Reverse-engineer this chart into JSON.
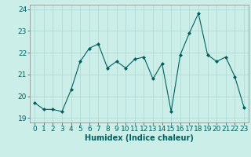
{
  "x": [
    0,
    1,
    2,
    3,
    4,
    5,
    6,
    7,
    8,
    9,
    10,
    11,
    12,
    13,
    14,
    15,
    16,
    17,
    18,
    19,
    20,
    21,
    22,
    23
  ],
  "y": [
    19.7,
    19.4,
    19.4,
    19.3,
    20.3,
    21.6,
    22.2,
    22.4,
    21.3,
    21.6,
    21.3,
    21.7,
    21.8,
    20.8,
    21.5,
    19.3,
    21.9,
    22.9,
    23.8,
    21.9,
    21.6,
    21.8,
    20.9,
    19.5
  ],
  "xlabel": "Humidex (Indice chaleur)",
  "ylim": [
    18.8,
    24.2
  ],
  "yticks": [
    19,
    20,
    21,
    22,
    23,
    24
  ],
  "xticks": [
    0,
    1,
    2,
    3,
    4,
    5,
    6,
    7,
    8,
    9,
    10,
    11,
    12,
    13,
    14,
    15,
    16,
    17,
    18,
    19,
    20,
    21,
    22,
    23
  ],
  "line_color": "#006060",
  "marker_color": "#006060",
  "bg_color": "#cceee8",
  "grid_color": "#aad8d0",
  "xlabel_fontsize": 7,
  "tick_fontsize": 6.5
}
